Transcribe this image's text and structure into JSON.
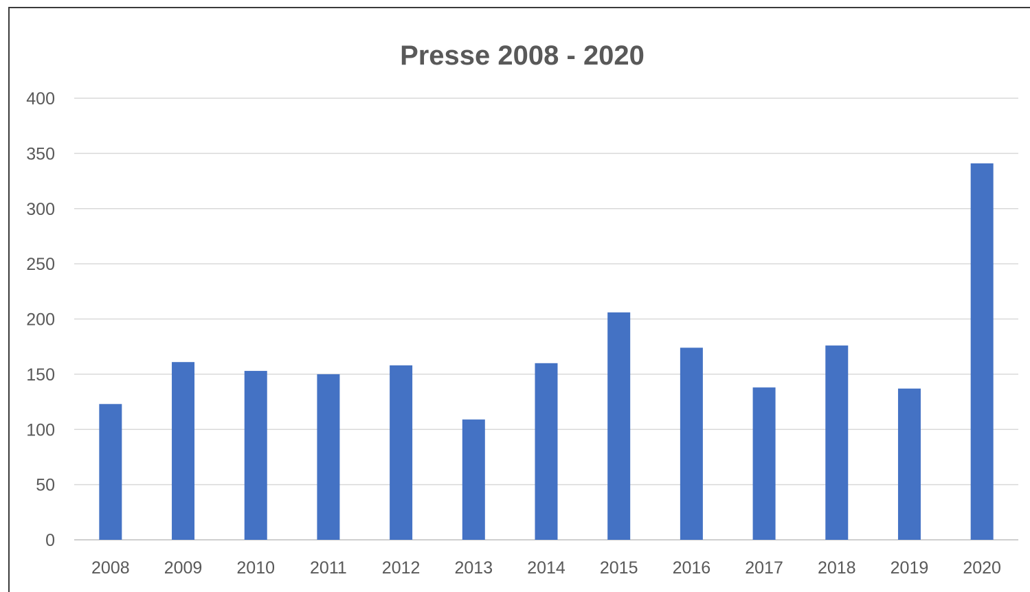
{
  "chart_data": {
    "type": "bar",
    "title": "Presse 2008 - 2020",
    "xlabel": "",
    "ylabel": "",
    "categories": [
      "2008",
      "2009",
      "2010",
      "2011",
      "2012",
      "2013",
      "2014",
      "2015",
      "2016",
      "2017",
      "2018",
      "2019",
      "2020"
    ],
    "values": [
      123,
      161,
      153,
      150,
      158,
      109,
      160,
      206,
      174,
      138,
      176,
      137,
      341
    ],
    "ylim": [
      0,
      400
    ],
    "yticks": [
      0,
      50,
      100,
      150,
      200,
      250,
      300,
      350,
      400
    ],
    "grid": true,
    "legend": "none",
    "bar_color": "#4472C4"
  }
}
